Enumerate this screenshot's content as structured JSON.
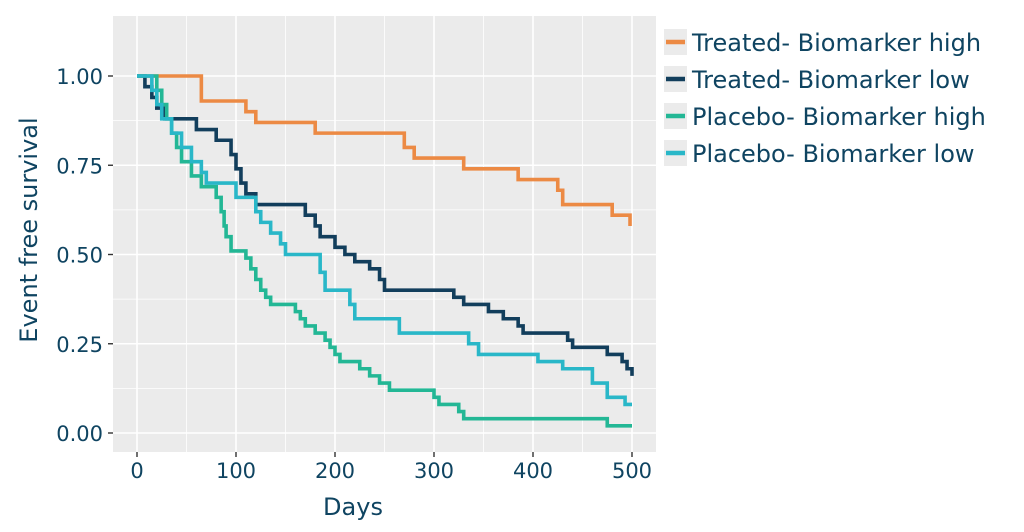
{
  "chart_data": {
    "type": "line",
    "title": "",
    "xlabel": "Days",
    "ylabel": "Event free survival",
    "xlim": [
      -20,
      520
    ],
    "ylim": [
      -0.04,
      1.12
    ],
    "xticks": [
      0,
      100,
      200,
      300,
      400,
      500
    ],
    "xtick_labels": [
      "0",
      "100",
      "200",
      "300",
      "400",
      "500"
    ],
    "yticks": [
      0,
      0.25,
      0.5,
      0.75,
      1
    ],
    "ytick_labels": [
      "0.00",
      "0.25",
      "0.50",
      "0.75",
      "1.00"
    ],
    "grid": true,
    "legend_position": "right",
    "series": [
      {
        "name": "Treated- Biomarker high",
        "color": "#ec8a44",
        "step": true,
        "points": [
          [
            0,
            1.0
          ],
          [
            60,
            1.0
          ],
          [
            65,
            0.93
          ],
          [
            105,
            0.93
          ],
          [
            110,
            0.9
          ],
          [
            120,
            0.87
          ],
          [
            175,
            0.87
          ],
          [
            180,
            0.84
          ],
          [
            265,
            0.84
          ],
          [
            270,
            0.8
          ],
          [
            280,
            0.77
          ],
          [
            325,
            0.77
          ],
          [
            330,
            0.74
          ],
          [
            380,
            0.74
          ],
          [
            385,
            0.71
          ],
          [
            420,
            0.71
          ],
          [
            425,
            0.68
          ],
          [
            430,
            0.64
          ],
          [
            475,
            0.64
          ],
          [
            480,
            0.61
          ],
          [
            495,
            0.61
          ],
          [
            498,
            0.58
          ]
        ]
      },
      {
        "name": "Treated- Biomarker low",
        "color": "#123e5c",
        "step": true,
        "points": [
          [
            0,
            1.0
          ],
          [
            8,
            0.97
          ],
          [
            15,
            0.94
          ],
          [
            20,
            0.91
          ],
          [
            28,
            0.88
          ],
          [
            55,
            0.88
          ],
          [
            60,
            0.85
          ],
          [
            75,
            0.85
          ],
          [
            80,
            0.82
          ],
          [
            90,
            0.82
          ],
          [
            95,
            0.78
          ],
          [
            100,
            0.74
          ],
          [
            105,
            0.7
          ],
          [
            110,
            0.67
          ],
          [
            120,
            0.64
          ],
          [
            165,
            0.64
          ],
          [
            170,
            0.61
          ],
          [
            175,
            0.61
          ],
          [
            180,
            0.58
          ],
          [
            185,
            0.55
          ],
          [
            195,
            0.55
          ],
          [
            200,
            0.52
          ],
          [
            210,
            0.5
          ],
          [
            220,
            0.48
          ],
          [
            235,
            0.46
          ],
          [
            245,
            0.43
          ],
          [
            250,
            0.4
          ],
          [
            310,
            0.4
          ],
          [
            320,
            0.38
          ],
          [
            330,
            0.36
          ],
          [
            350,
            0.36
          ],
          [
            355,
            0.34
          ],
          [
            370,
            0.32
          ],
          [
            385,
            0.3
          ],
          [
            390,
            0.28
          ],
          [
            430,
            0.28
          ],
          [
            435,
            0.26
          ],
          [
            440,
            0.24
          ],
          [
            470,
            0.24
          ],
          [
            475,
            0.22
          ],
          [
            490,
            0.2
          ],
          [
            495,
            0.18
          ],
          [
            500,
            0.16
          ]
        ]
      },
      {
        "name": "Placebo- Biomarker high",
        "color": "#23b795",
        "step": true,
        "points": [
          [
            0,
            1.0
          ],
          [
            18,
            1.0
          ],
          [
            20,
            0.96
          ],
          [
            25,
            0.92
          ],
          [
            30,
            0.88
          ],
          [
            35,
            0.84
          ],
          [
            40,
            0.8
          ],
          [
            45,
            0.76
          ],
          [
            55,
            0.72
          ],
          [
            65,
            0.69
          ],
          [
            80,
            0.66
          ],
          [
            85,
            0.62
          ],
          [
            88,
            0.58
          ],
          [
            90,
            0.55
          ],
          [
            95,
            0.51
          ],
          [
            110,
            0.49
          ],
          [
            115,
            0.46
          ],
          [
            120,
            0.43
          ],
          [
            125,
            0.4
          ],
          [
            130,
            0.38
          ],
          [
            135,
            0.36
          ],
          [
            150,
            0.36
          ],
          [
            160,
            0.34
          ],
          [
            165,
            0.32
          ],
          [
            170,
            0.3
          ],
          [
            180,
            0.28
          ],
          [
            190,
            0.26
          ],
          [
            195,
            0.24
          ],
          [
            200,
            0.22
          ],
          [
            205,
            0.2
          ],
          [
            225,
            0.18
          ],
          [
            235,
            0.16
          ],
          [
            245,
            0.14
          ],
          [
            255,
            0.12
          ],
          [
            295,
            0.12
          ],
          [
            300,
            0.1
          ],
          [
            305,
            0.08
          ],
          [
            325,
            0.06
          ],
          [
            330,
            0.04
          ],
          [
            350,
            0.04
          ],
          [
            355,
            0.04
          ],
          [
            470,
            0.04
          ],
          [
            475,
            0.02
          ],
          [
            500,
            0.02
          ]
        ]
      },
      {
        "name": "Placebo- Biomarker low",
        "color": "#29b7c8",
        "step": true,
        "points": [
          [
            0,
            1.0
          ],
          [
            10,
            1.0
          ],
          [
            15,
            0.96
          ],
          [
            20,
            0.92
          ],
          [
            25,
            0.88
          ],
          [
            35,
            0.84
          ],
          [
            45,
            0.8
          ],
          [
            55,
            0.76
          ],
          [
            65,
            0.73
          ],
          [
            70,
            0.7
          ],
          [
            95,
            0.7
          ],
          [
            100,
            0.66
          ],
          [
            115,
            0.66
          ],
          [
            120,
            0.62
          ],
          [
            125,
            0.59
          ],
          [
            135,
            0.56
          ],
          [
            145,
            0.53
          ],
          [
            150,
            0.5
          ],
          [
            180,
            0.5
          ],
          [
            185,
            0.45
          ],
          [
            190,
            0.4
          ],
          [
            210,
            0.4
          ],
          [
            215,
            0.36
          ],
          [
            220,
            0.32
          ],
          [
            260,
            0.32
          ],
          [
            265,
            0.28
          ],
          [
            330,
            0.28
          ],
          [
            335,
            0.25
          ],
          [
            345,
            0.22
          ],
          [
            400,
            0.22
          ],
          [
            405,
            0.2
          ],
          [
            425,
            0.2
          ],
          [
            430,
            0.18
          ],
          [
            450,
            0.18
          ],
          [
            460,
            0.14
          ],
          [
            475,
            0.1
          ],
          [
            490,
            0.1
          ],
          [
            493,
            0.08
          ],
          [
            500,
            0.08
          ]
        ]
      }
    ]
  }
}
